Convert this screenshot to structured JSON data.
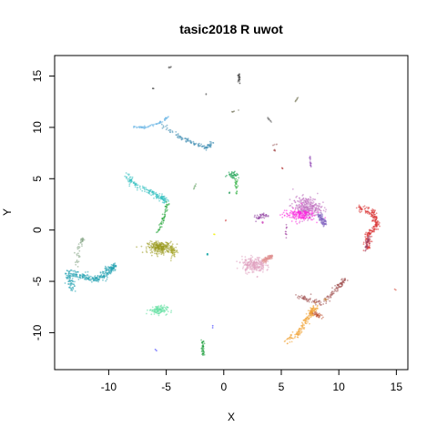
{
  "chart_data": {
    "type": "scatter",
    "title": "tasic2018 R uwot",
    "xlabel": "X",
    "ylabel": "Y",
    "xlim": [
      -14.7,
      16.0
    ],
    "ylim": [
      -13.6,
      17.0
    ],
    "xticks": [
      -10,
      -5,
      0,
      5,
      10,
      15
    ],
    "yticks": [
      -10,
      -5,
      0,
      5,
      10,
      15
    ],
    "grid": false,
    "legend": "none",
    "clusters": [
      {
        "color": "#20a0b0",
        "kind": "path",
        "path": [
          [
            -13.2,
            -5.8
          ],
          [
            -13.5,
            -4.2
          ],
          [
            -12.2,
            -4.5
          ],
          [
            -11.0,
            -4.8
          ],
          [
            -10.0,
            -4.0
          ],
          [
            -9.5,
            -3.5
          ]
        ],
        "spread": 0.35,
        "n": 320
      },
      {
        "color": "#7fa07f",
        "kind": "path",
        "path": [
          [
            -12.7,
            -3.5
          ],
          [
            -12.5,
            -1.5
          ],
          [
            -12.2,
            -0.8
          ]
        ],
        "spread": 0.2,
        "n": 40
      },
      {
        "color": "#30c0c0",
        "kind": "path",
        "path": [
          [
            -8.5,
            5.6
          ],
          [
            -8.0,
            4.5
          ],
          [
            -6.5,
            3.8
          ],
          [
            -5.5,
            3.2
          ],
          [
            -5.0,
            2.8
          ]
        ],
        "spread": 0.3,
        "n": 160
      },
      {
        "color": "#1aa030",
        "kind": "path",
        "path": [
          [
            -4.8,
            2.8
          ],
          [
            -5.3,
            1.0
          ],
          [
            -5.8,
            -0.5
          ]
        ],
        "spread": 0.15,
        "n": 50
      },
      {
        "color": "#9a9a20",
        "kind": "blob",
        "center": [
          -5.5,
          -1.7
        ],
        "rx": 1.1,
        "ry": 0.55,
        "n": 260
      },
      {
        "color": "#a8a830",
        "kind": "blob",
        "center": [
          -4.4,
          -2.1
        ],
        "rx": 0.3,
        "ry": 0.6,
        "n": 50
      },
      {
        "color": "#6cb6e6",
        "kind": "path",
        "path": [
          [
            -7.8,
            10.0
          ],
          [
            -6.8,
            10.0
          ],
          [
            -5.5,
            10.5
          ],
          [
            -4.8,
            11.0
          ]
        ],
        "spread": 0.12,
        "n": 70
      },
      {
        "color": "#3a8ab0",
        "kind": "path",
        "path": [
          [
            -5.5,
            10.3
          ],
          [
            -4.0,
            9.2
          ],
          [
            -2.8,
            8.5
          ],
          [
            -1.5,
            8.0
          ],
          [
            -1.0,
            8.5
          ]
        ],
        "spread": 0.18,
        "n": 110
      },
      {
        "color": "#60e0a0",
        "kind": "blob",
        "center": [
          -5.7,
          -7.8
        ],
        "rx": 0.8,
        "ry": 0.45,
        "n": 110
      },
      {
        "color": "#20a040",
        "kind": "path",
        "path": [
          [
            -1.8,
            -10.8
          ],
          [
            -1.8,
            -12.2
          ]
        ],
        "spread": 0.12,
        "n": 40
      },
      {
        "color": "#808080",
        "kind": "path",
        "path": [
          [
            -4.5,
            15.9
          ],
          [
            -4.8,
            15.8
          ]
        ],
        "spread": 0.06,
        "n": 12
      },
      {
        "color": "#404040",
        "kind": "point",
        "center": [
          -6.2,
          13.8
        ],
        "n": 3
      },
      {
        "color": "#505050",
        "kind": "point",
        "center": [
          -1.5,
          13.2
        ],
        "n": 2
      },
      {
        "color": "#505050",
        "kind": "path",
        "path": [
          [
            1.3,
            15.2
          ],
          [
            1.4,
            14.2
          ]
        ],
        "spread": 0.08,
        "n": 30
      },
      {
        "color": "#7a7a60",
        "kind": "path",
        "path": [
          [
            0.7,
            11.5
          ],
          [
            1.3,
            11.7
          ]
        ],
        "spread": 0.04,
        "n": 6
      },
      {
        "color": "#808080",
        "kind": "path",
        "path": [
          [
            3.8,
            11.0
          ],
          [
            4.3,
            10.3
          ]
        ],
        "spread": 0.05,
        "n": 12
      },
      {
        "color": "#8a8a70",
        "kind": "path",
        "path": [
          [
            6.2,
            12.5
          ],
          [
            6.5,
            13.0
          ]
        ],
        "spread": 0.05,
        "n": 10
      },
      {
        "color": "#a04040",
        "kind": "point",
        "center": [
          4.4,
          7.8
        ],
        "n": 4
      },
      {
        "color": "#b03030",
        "kind": "point",
        "center": [
          5.1,
          6.0
        ],
        "n": 3
      },
      {
        "color": "#b08080",
        "kind": "path",
        "path": [
          [
            4.1,
            8.2
          ],
          [
            4.7,
            8.4
          ]
        ],
        "spread": 0.03,
        "n": 5
      },
      {
        "color": "#1aa050",
        "kind": "blob",
        "center": [
          0.8,
          5.4
        ],
        "rx": 0.5,
        "ry": 0.35,
        "n": 40
      },
      {
        "color": "#30b040",
        "kind": "path",
        "path": [
          [
            1.1,
            5.0
          ],
          [
            1.1,
            3.5
          ]
        ],
        "spread": 0.12,
        "n": 25
      },
      {
        "color": "#60a060",
        "kind": "path",
        "path": [
          [
            -2.4,
            4.5
          ],
          [
            -2.6,
            4.0
          ]
        ],
        "spread": 0.05,
        "n": 6
      },
      {
        "color": "#30a060",
        "kind": "point",
        "center": [
          0.5,
          3.6
        ],
        "n": 4
      },
      {
        "color": "#a060c0",
        "kind": "path",
        "path": [
          [
            7.5,
            7.2
          ],
          [
            7.6,
            6.0
          ]
        ],
        "spread": 0.08,
        "n": 20
      },
      {
        "color": "#c070c0",
        "kind": "blob",
        "center": [
          7.2,
          2.2
        ],
        "rx": 1.2,
        "ry": 1.0,
        "n": 300
      },
      {
        "color": "#ff20e0",
        "kind": "blob",
        "center": [
          6.5,
          1.5
        ],
        "rx": 1.4,
        "ry": 0.6,
        "n": 150
      },
      {
        "color": "#8060c0",
        "kind": "path",
        "path": [
          [
            8.3,
            1.5
          ],
          [
            8.8,
            0.5
          ]
        ],
        "spread": 0.25,
        "n": 80
      },
      {
        "color": "#9040a0",
        "kind": "path",
        "path": [
          [
            2.7,
            1.2
          ],
          [
            3.8,
            1.5
          ]
        ],
        "spread": 0.25,
        "n": 40
      },
      {
        "color": "#d050c0",
        "kind": "point",
        "center": [
          3.4,
          0.7
        ],
        "n": 6
      },
      {
        "color": "#a040a0",
        "kind": "path",
        "path": [
          [
            5.5,
            0.5
          ],
          [
            5.4,
            -0.8
          ]
        ],
        "spread": 0.1,
        "n": 10
      },
      {
        "color": "#e0a0c0",
        "kind": "blob",
        "center": [
          2.6,
          -3.4
        ],
        "rx": 1.0,
        "ry": 0.75,
        "n": 240
      },
      {
        "color": "#e09090",
        "kind": "path",
        "path": [
          [
            3.5,
            -3.0
          ],
          [
            4.2,
            -2.5
          ]
        ],
        "spread": 0.25,
        "n": 80
      },
      {
        "color": "#d83030",
        "kind": "path",
        "path": [
          [
            11.8,
            2.1
          ],
          [
            13.0,
            1.7
          ],
          [
            13.3,
            0.5
          ],
          [
            12.5,
            -0.5
          ],
          [
            12.5,
            -1.8
          ]
        ],
        "spread": 0.3,
        "n": 220
      },
      {
        "color": "#a04060",
        "kind": "path",
        "path": [
          [
            12.6,
            -0.6
          ],
          [
            12.3,
            -2.0
          ]
        ],
        "spread": 0.15,
        "n": 40
      },
      {
        "color": "#d04030",
        "kind": "point",
        "center": [
          14.9,
          -5.8
        ],
        "n": 2
      },
      {
        "color": "#a05050",
        "kind": "path",
        "path": [
          [
            6.5,
            -6.5
          ],
          [
            8.5,
            -7.2
          ],
          [
            10.0,
            -5.5
          ],
          [
            10.5,
            -4.8
          ]
        ],
        "spread": 0.25,
        "n": 140
      },
      {
        "color": "#c05030",
        "kind": "path",
        "path": [
          [
            7.5,
            -8.0
          ],
          [
            8.5,
            -8.5
          ]
        ],
        "spread": 0.2,
        "n": 40
      },
      {
        "color": "#f0a030",
        "kind": "path",
        "path": [
          [
            5.3,
            -11.0
          ],
          [
            6.5,
            -10.0
          ],
          [
            7.5,
            -8.2
          ],
          [
            8.0,
            -7.4
          ]
        ],
        "spread": 0.3,
        "n": 160
      },
      {
        "color": "#c08040",
        "kind": "point",
        "center": [
          8.8,
          -6.8
        ],
        "n": 8
      },
      {
        "color": "#f0f000",
        "kind": "point",
        "center": [
          -0.8,
          -0.4
        ],
        "n": 3
      },
      {
        "color": "#d04040",
        "kind": "point",
        "center": [
          0.2,
          1.0
        ],
        "n": 2
      },
      {
        "color": "#00a0a0",
        "kind": "point",
        "center": [
          -1.4,
          -2.4
        ],
        "n": 5
      },
      {
        "color": "#1a1aff",
        "kind": "point",
        "center": [
          -1.0,
          -9.4
        ],
        "n": 2
      },
      {
        "color": "#1a1aff",
        "kind": "point",
        "center": [
          -5.9,
          -11.7
        ],
        "n": 2
      }
    ]
  }
}
